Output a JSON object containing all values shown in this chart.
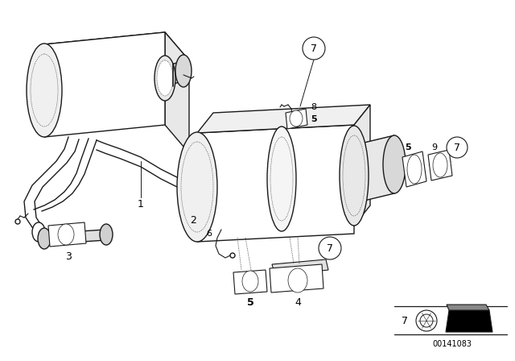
{
  "bg_color": "#ffffff",
  "line_color": "#1a1a1a",
  "image_id": "00141083",
  "fig_width": 6.4,
  "fig_height": 4.48,
  "dpi": 100
}
